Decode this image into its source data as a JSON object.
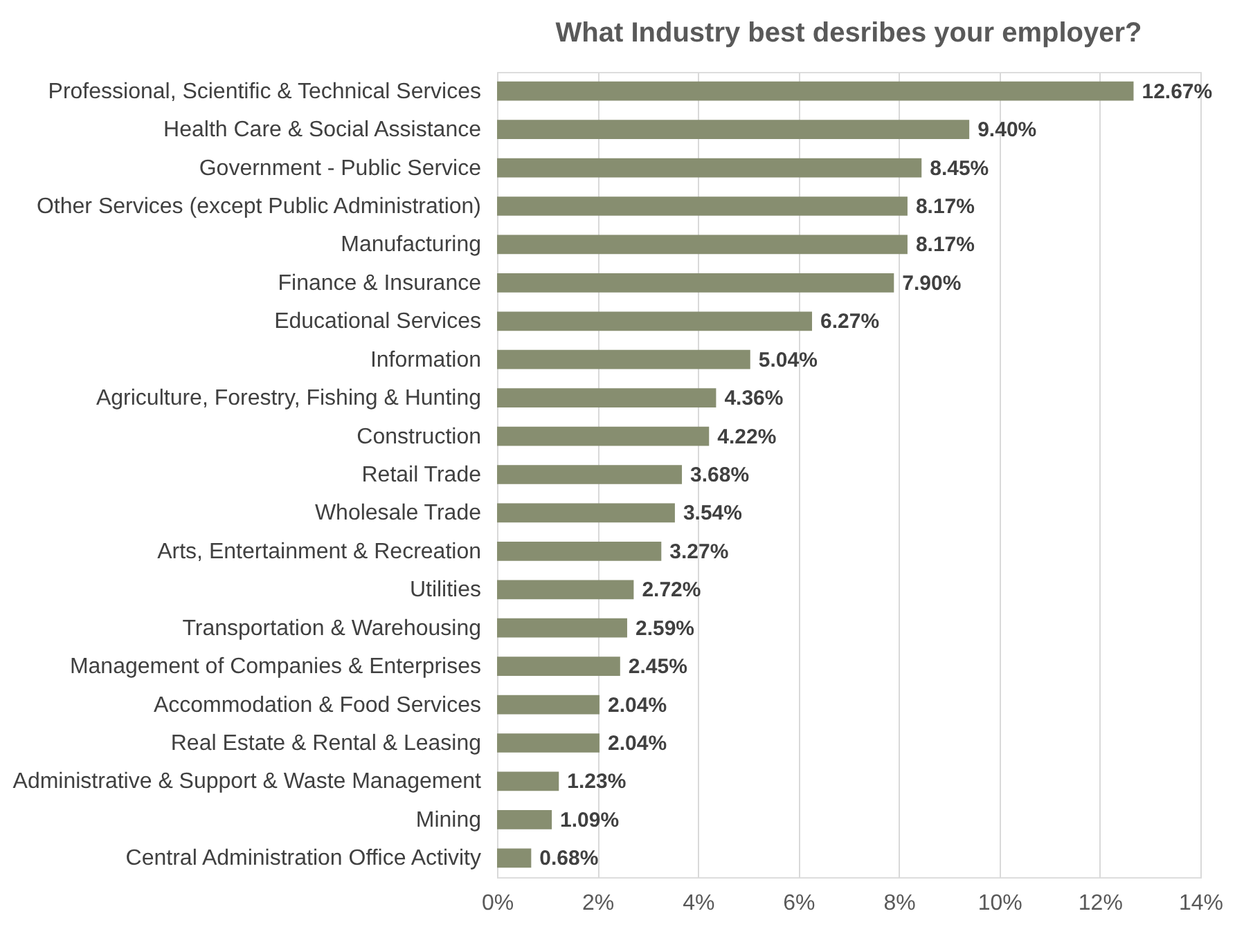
{
  "chart_data": {
    "type": "bar",
    "orientation": "horizontal",
    "title": "What Industry best desribes your employer?",
    "categories": [
      "Professional, Scientific & Technical Services",
      "Health Care & Social Assistance",
      "Government - Public Service",
      "Other Services (except Public Administration)",
      "Manufacturing",
      "Finance & Insurance",
      "Educational Services",
      "Information",
      "Agriculture, Forestry, Fishing & Hunting",
      "Construction",
      "Retail Trade",
      "Wholesale Trade",
      "Arts, Entertainment & Recreation",
      "Utilities",
      "Transportation & Warehousing",
      "Management of Companies & Enterprises",
      "Accommodation & Food Services",
      "Real Estate & Rental & Leasing",
      "Administrative & Support & Waste Management",
      "Mining",
      "Central Administration Office Activity"
    ],
    "values": [
      12.67,
      9.4,
      8.45,
      8.17,
      8.17,
      7.9,
      6.27,
      5.04,
      4.36,
      4.22,
      3.68,
      3.54,
      3.27,
      2.72,
      2.59,
      2.45,
      2.04,
      2.04,
      1.23,
      1.09,
      0.68
    ],
    "value_labels": [
      "12.67%",
      "9.40%",
      "8.45%",
      "8.17%",
      "8.17%",
      "7.90%",
      "6.27%",
      "5.04%",
      "4.36%",
      "4.22%",
      "3.68%",
      "3.54%",
      "3.27%",
      "2.72%",
      "2.59%",
      "2.45%",
      "2.04%",
      "2.04%",
      "1.23%",
      "1.09%",
      "0.68%"
    ],
    "color": "#878e70",
    "xlim": [
      0,
      14
    ],
    "xticks": [
      {
        "value": 0,
        "label": "0%"
      },
      {
        "value": 2,
        "label": "2%"
      },
      {
        "value": 4,
        "label": "4%"
      },
      {
        "value": 6,
        "label": "6%"
      },
      {
        "value": 8,
        "label": "8%"
      },
      {
        "value": 10,
        "label": "10%"
      },
      {
        "value": 12,
        "label": "12%"
      },
      {
        "value": 14,
        "label": "14%"
      }
    ],
    "grid": "x"
  }
}
